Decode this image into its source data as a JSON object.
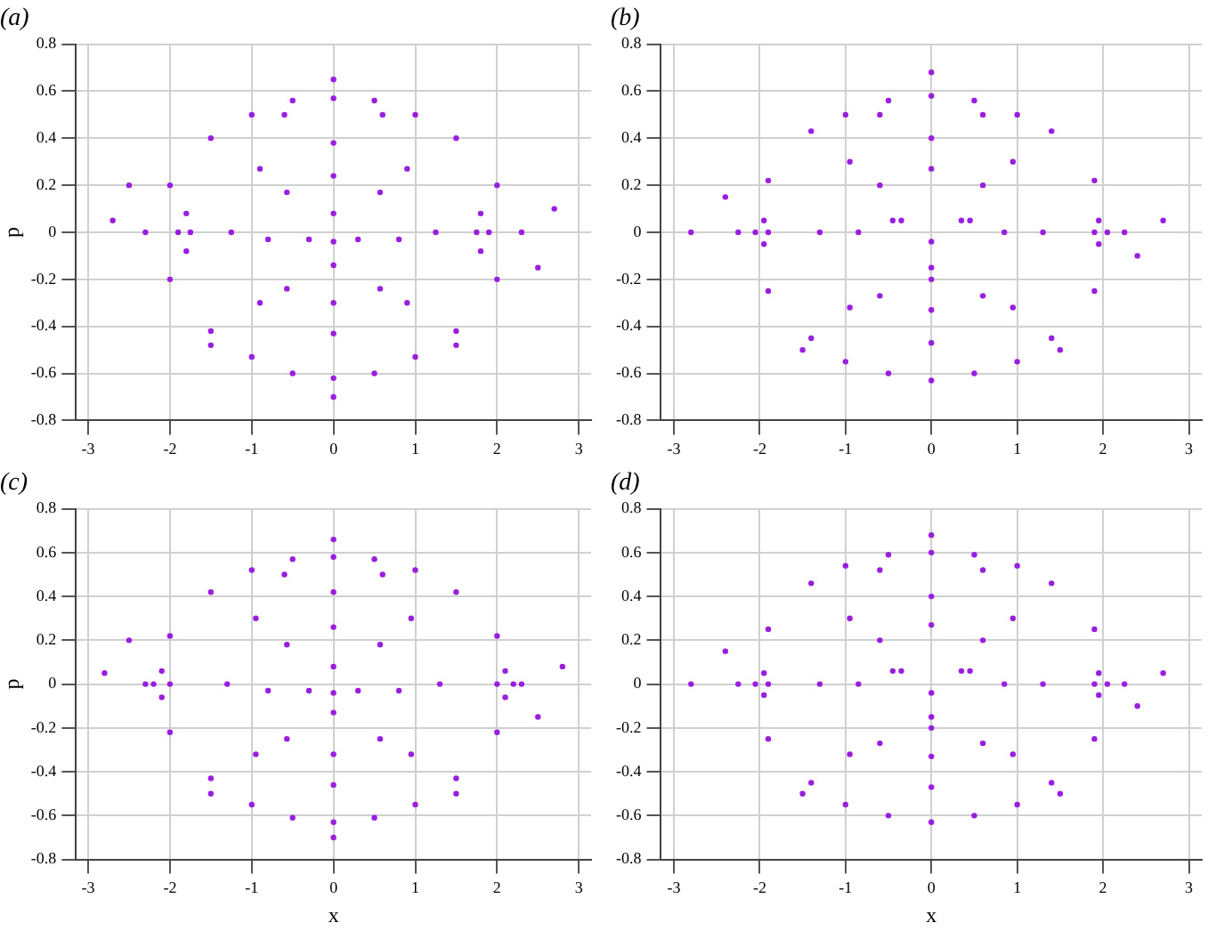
{
  "chart_data": [
    {
      "type": "scatter",
      "title": "(a)",
      "marker": "circle",
      "legend": false,
      "grid": true,
      "ylabel": "p",
      "xlim": [
        -3.15,
        3.15
      ],
      "ylim": [
        -0.8,
        0.8
      ],
      "xticks": [
        -3,
        -2,
        -1,
        0,
        1,
        2,
        3
      ],
      "yticks": [
        -0.8,
        -0.6,
        -0.4,
        -0.2,
        0,
        0.2,
        0.4,
        0.6,
        0.8
      ],
      "series": [
        {
          "color": "#9a1ee0",
          "x": [
            -2.3,
            -2.0,
            -1.5,
            -1.0,
            -0.5,
            0,
            0.5,
            1.0,
            1.5,
            2.0,
            2.3,
            2.0,
            1.5,
            1.0,
            0.5,
            0,
            -0.5,
            -1.0,
            -1.5,
            -2.0,
            -1.25,
            -0.9,
            0,
            0.9,
            1.25,
            0.9,
            0,
            -0.9,
            -0.8,
            -0.57,
            0,
            0.57,
            0.8,
            0.57,
            0,
            -0.57,
            -0.3,
            0,
            0.3,
            0,
            0,
            1.8,
            1.9,
            1.8,
            1.75,
            -1.8,
            -1.9,
            -1.8,
            -1.75,
            -2.7,
            2.7,
            0,
            0,
            -2.5,
            2.5,
            -0.6,
            0.6,
            -1.5,
            1.5
          ],
          "values": [
            0,
            0.2,
            0.4,
            0.5,
            0.56,
            0.57,
            0.56,
            0.5,
            0.4,
            0.2,
            0,
            -0.2,
            -0.42,
            -0.53,
            -0.6,
            -0.62,
            -0.6,
            -0.53,
            -0.42,
            -0.2,
            0,
            0.27,
            0.38,
            0.27,
            0,
            -0.3,
            -0.43,
            -0.3,
            -0.03,
            0.17,
            0.24,
            0.17,
            -0.03,
            -0.24,
            -0.3,
            -0.24,
            -0.03,
            0.08,
            -0.03,
            -0.14,
            -0.04,
            0.08,
            0,
            -0.08,
            0,
            0.08,
            0,
            -0.08,
            0,
            0.05,
            0.1,
            0.65,
            -0.7,
            0.2,
            -0.15,
            0.5,
            0.5,
            -0.48,
            -0.48
          ]
        }
      ]
    },
    {
      "type": "scatter",
      "title": "(b)",
      "marker": "circle",
      "legend": false,
      "grid": true,
      "xlim": [
        -3.15,
        3.15
      ],
      "ylim": [
        -0.8,
        0.8
      ],
      "xticks": [
        -3,
        -2,
        -1,
        0,
        1,
        2,
        3
      ],
      "yticks": [
        -0.8,
        -0.6,
        -0.4,
        -0.2,
        0,
        0.2,
        0.4,
        0.6,
        0.8
      ],
      "series": [
        {
          "color": "#9a1ee0",
          "x": [
            -2.25,
            -1.9,
            -1.4,
            -1.0,
            -0.5,
            0,
            0.5,
            1.0,
            1.4,
            1.9,
            2.25,
            1.9,
            1.4,
            1.0,
            0.5,
            0,
            -0.5,
            -1.0,
            -1.4,
            -1.9,
            -1.3,
            -0.95,
            0,
            0.95,
            1.3,
            0.95,
            0,
            -0.95,
            -0.85,
            -0.6,
            0,
            0.6,
            0.85,
            0.6,
            0,
            -0.6,
            -0.35,
            0.35,
            0,
            -0.45,
            0.45,
            0,
            0,
            1.95,
            2.05,
            1.95,
            1.9,
            -1.95,
            -2.05,
            -1.95,
            -1.9,
            -2.8,
            2.7,
            0,
            -2.4,
            2.4,
            -0.6,
            0.6,
            -1.5,
            1.5
          ],
          "values": [
            0,
            0.22,
            0.43,
            0.5,
            0.56,
            0.58,
            0.56,
            0.5,
            0.43,
            0.22,
            0,
            -0.25,
            -0.45,
            -0.55,
            -0.6,
            -0.63,
            -0.6,
            -0.55,
            -0.45,
            -0.25,
            0,
            0.3,
            0.4,
            0.3,
            0,
            -0.32,
            -0.47,
            -0.32,
            0,
            0.2,
            0.27,
            0.2,
            0,
            -0.27,
            -0.33,
            -0.27,
            0.05,
            0.05,
            -0.2,
            0.05,
            0.05,
            -0.15,
            -0.04,
            0.05,
            0,
            -0.05,
            0,
            0.05,
            0,
            -0.05,
            0,
            0,
            0.05,
            0.68,
            0.15,
            -0.1,
            0.5,
            0.5,
            -0.5,
            -0.5
          ]
        }
      ]
    },
    {
      "type": "scatter",
      "title": "(c)",
      "marker": "circle",
      "legend": false,
      "grid": true,
      "xlabel": "x",
      "ylabel": "p",
      "xlim": [
        -3.15,
        3.15
      ],
      "ylim": [
        -0.8,
        0.8
      ],
      "xticks": [
        -3,
        -2,
        -1,
        0,
        1,
        2,
        3
      ],
      "yticks": [
        -0.8,
        -0.6,
        -0.4,
        -0.2,
        0,
        0.2,
        0.4,
        0.6,
        0.8
      ],
      "series": [
        {
          "color": "#9a1ee0",
          "x": [
            -2.3,
            -2.0,
            -1.5,
            -1.0,
            -0.5,
            0,
            0.5,
            1.0,
            1.5,
            2.0,
            2.3,
            2.0,
            1.5,
            1.0,
            0.5,
            0,
            -0.5,
            -1.0,
            -1.5,
            -2.0,
            -1.3,
            -0.95,
            0,
            0.95,
            1.3,
            0.95,
            0,
            -0.95,
            -0.8,
            -0.57,
            0,
            0.57,
            0.8,
            0.57,
            0,
            -0.57,
            -0.3,
            0,
            0.3,
            0,
            0,
            2.1,
            2.2,
            2.1,
            2.0,
            -2.1,
            -2.2,
            -2.1,
            -2.0,
            -2.8,
            2.8,
            0,
            0,
            -2.5,
            2.5,
            -0.6,
            0.6,
            -1.5,
            1.5
          ],
          "values": [
            0,
            0.22,
            0.42,
            0.52,
            0.57,
            0.58,
            0.57,
            0.52,
            0.42,
            0.22,
            0,
            -0.22,
            -0.43,
            -0.55,
            -0.61,
            -0.63,
            -0.61,
            -0.55,
            -0.43,
            -0.22,
            0,
            0.3,
            0.42,
            0.3,
            0,
            -0.32,
            -0.46,
            -0.32,
            -0.03,
            0.18,
            0.26,
            0.18,
            -0.03,
            -0.25,
            -0.32,
            -0.25,
            -0.03,
            0.08,
            -0.03,
            -0.13,
            -0.04,
            0.06,
            0,
            -0.06,
            0,
            0.06,
            0,
            -0.06,
            0,
            0.05,
            0.08,
            0.66,
            -0.7,
            0.2,
            -0.15,
            0.5,
            0.5,
            -0.5,
            -0.5
          ]
        }
      ]
    },
    {
      "type": "scatter",
      "title": "(d)",
      "marker": "circle",
      "legend": false,
      "grid": true,
      "xlabel": "x",
      "xlim": [
        -3.15,
        3.15
      ],
      "ylim": [
        -0.8,
        0.8
      ],
      "xticks": [
        -3,
        -2,
        -1,
        0,
        1,
        2,
        3
      ],
      "yticks": [
        -0.8,
        -0.6,
        -0.4,
        -0.2,
        0,
        0.2,
        0.4,
        0.6,
        0.8
      ],
      "series": [
        {
          "color": "#9a1ee0",
          "x": [
            -2.25,
            -1.9,
            -1.4,
            -1.0,
            -0.5,
            0,
            0.5,
            1.0,
            1.4,
            1.9,
            2.25,
            1.9,
            1.4,
            1.0,
            0.5,
            0,
            -0.5,
            -1.0,
            -1.4,
            -1.9,
            -1.3,
            -0.95,
            0,
            0.95,
            1.3,
            0.95,
            0,
            -0.95,
            -0.85,
            -0.6,
            0,
            0.6,
            0.85,
            0.6,
            0,
            -0.6,
            -0.35,
            0.35,
            0,
            -0.45,
            0.45,
            0,
            0,
            1.95,
            2.05,
            1.95,
            1.9,
            -1.95,
            -2.05,
            -1.95,
            -1.9,
            -2.8,
            2.7,
            0,
            -2.4,
            2.4,
            -0.6,
            0.6,
            -1.5,
            1.5
          ],
          "values": [
            0,
            0.25,
            0.46,
            0.54,
            0.59,
            0.6,
            0.59,
            0.54,
            0.46,
            0.25,
            0,
            -0.25,
            -0.45,
            -0.55,
            -0.6,
            -0.63,
            -0.6,
            -0.55,
            -0.45,
            -0.25,
            0,
            0.3,
            0.4,
            0.3,
            0,
            -0.32,
            -0.47,
            -0.32,
            0,
            0.2,
            0.27,
            0.2,
            0,
            -0.27,
            -0.33,
            -0.27,
            0.06,
            0.06,
            -0.2,
            0.06,
            0.06,
            -0.15,
            -0.04,
            0.05,
            0,
            -0.05,
            0,
            0.05,
            0,
            -0.05,
            0,
            0,
            0.05,
            0.68,
            0.15,
            -0.1,
            0.52,
            0.52,
            -0.5,
            -0.5
          ]
        }
      ]
    }
  ]
}
